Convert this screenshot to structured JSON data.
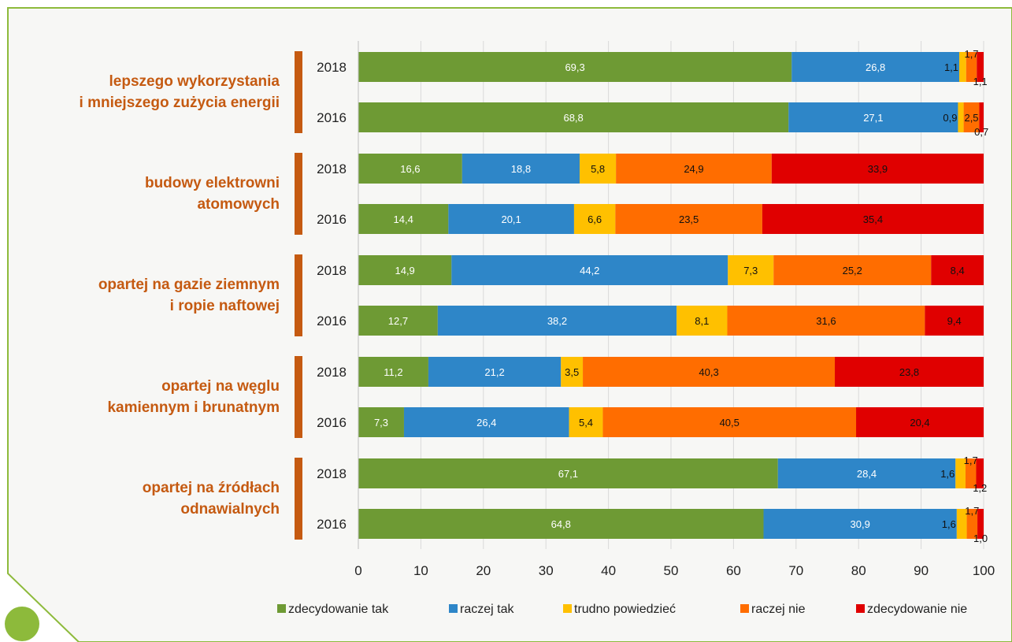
{
  "chart_data": {
    "type": "stacked-bar-horizontal",
    "xlim": [
      0,
      100
    ],
    "xticks": [
      "0",
      "10",
      "20",
      "30",
      "40",
      "50",
      "60",
      "70",
      "80",
      "90",
      "100"
    ],
    "grid": true,
    "legend_position": "bottom",
    "series": [
      {
        "name": "zdecydowanie tak",
        "color": "#6e9a34"
      },
      {
        "name": "raczej tak",
        "color": "#2e86c8"
      },
      {
        "name": "trudno powiedzieć",
        "color": "#ffc000"
      },
      {
        "name": "raczej nie",
        "color": "#ff6d00"
      },
      {
        "name": "zdecydowanie nie",
        "color": "#e00000"
      }
    ],
    "groups": [
      {
        "label": [
          "lepszego wykorzystania",
          "i mniejszego zużycia energii"
        ],
        "rows": [
          {
            "year": "2018",
            "values": [
              69.3,
              26.8,
              1.1,
              1.7,
              1.1
            ],
            "labels": [
              "69,3",
              "26,8",
              "1,1",
              "1,7",
              "1,1"
            ]
          },
          {
            "year": "2016",
            "values": [
              68.8,
              27.1,
              0.9,
              2.5,
              0.7
            ],
            "labels": [
              "68,8",
              "27,1",
              "0,9",
              "2,5",
              "0,7"
            ]
          }
        ]
      },
      {
        "label": [
          "budowy elektrowni",
          "atomowych"
        ],
        "rows": [
          {
            "year": "2018",
            "values": [
              16.6,
              18.8,
              5.8,
              24.9,
              33.9
            ],
            "labels": [
              "16,6",
              "18,8",
              "5,8",
              "24,9",
              "33,9"
            ]
          },
          {
            "year": "2016",
            "values": [
              14.4,
              20.1,
              6.6,
              23.5,
              35.4
            ],
            "labels": [
              "14,4",
              "20,1",
              "6,6",
              "23,5",
              "35,4"
            ]
          }
        ]
      },
      {
        "label": [
          "opartej na gazie ziemnym",
          "i ropie naftowej"
        ],
        "rows": [
          {
            "year": "2018",
            "values": [
              14.9,
              44.2,
              7.3,
              25.2,
              8.4
            ],
            "labels": [
              "14,9",
              "44,2",
              "7,3",
              "25,2",
              "8,4"
            ]
          },
          {
            "year": "2016",
            "values": [
              12.7,
              38.2,
              8.1,
              31.6,
              9.4
            ],
            "labels": [
              "12,7",
              "38,2",
              "8,1",
              "31,6",
              "9,4"
            ]
          }
        ]
      },
      {
        "label": [
          "opartej na węglu",
          "kamiennym i brunatnym"
        ],
        "rows": [
          {
            "year": "2018",
            "values": [
              11.2,
              21.2,
              3.5,
              40.3,
              23.8
            ],
            "labels": [
              "11,2",
              "21,2",
              "3,5",
              "40,3",
              "23,8"
            ]
          },
          {
            "year": "2016",
            "values": [
              7.3,
              26.4,
              5.4,
              40.5,
              20.4
            ],
            "labels": [
              "7,3",
              "26,4",
              "5,4",
              "40,5",
              "20,4"
            ]
          }
        ]
      },
      {
        "label": [
          "opartej na źródłach",
          "odnawialnych"
        ],
        "rows": [
          {
            "year": "2018",
            "values": [
              67.1,
              28.4,
              1.6,
              1.7,
              1.2
            ],
            "labels": [
              "67,1",
              "28,4",
              "1,6",
              "1,7",
              "1,2"
            ]
          },
          {
            "year": "2016",
            "values": [
              64.8,
              30.9,
              1.6,
              1.7,
              1.0
            ],
            "labels": [
              "64,8",
              "30,9",
              "1,6",
              "1,7",
              "1,0"
            ]
          }
        ]
      }
    ]
  }
}
